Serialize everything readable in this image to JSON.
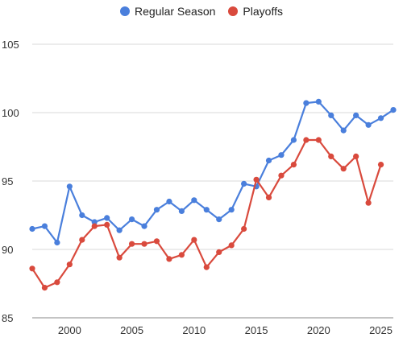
{
  "chart_data": {
    "type": "line",
    "title": "",
    "xlabel": "",
    "ylabel": "",
    "ylim": [
      85,
      105
    ],
    "xlim": [
      1997,
      2026
    ],
    "yticks": [
      85,
      90,
      95,
      100,
      105
    ],
    "xticks": [
      2000,
      2005,
      2010,
      2015,
      2020,
      2025
    ],
    "grid": "horizontal",
    "legend": "top-center",
    "series": [
      {
        "name": "Regular Season",
        "color": "#4a7fdc",
        "points": [
          [
            1997,
            91.5
          ],
          [
            1998,
            91.7
          ],
          [
            1999,
            90.5
          ],
          [
            2000,
            94.6
          ],
          [
            2001,
            92.5
          ],
          [
            2002,
            92.0
          ],
          [
            2003,
            92.3
          ],
          [
            2004,
            91.4
          ],
          [
            2005,
            92.2
          ],
          [
            2006,
            91.7
          ],
          [
            2007,
            92.9
          ],
          [
            2008,
            93.5
          ],
          [
            2009,
            92.8
          ],
          [
            2010,
            93.6
          ],
          [
            2011,
            92.9
          ],
          [
            2012,
            92.2
          ],
          [
            2013,
            92.9
          ],
          [
            2014,
            94.8
          ],
          [
            2015,
            94.6
          ],
          [
            2016,
            96.5
          ],
          [
            2017,
            96.9
          ],
          [
            2018,
            98.0
          ],
          [
            2019,
            100.7
          ],
          [
            2020,
            100.8
          ],
          [
            2021,
            99.8
          ],
          [
            2022,
            98.7
          ],
          [
            2023,
            99.8
          ],
          [
            2024,
            99.1
          ],
          [
            2025,
            99.6
          ],
          [
            2026,
            100.2
          ]
        ]
      },
      {
        "name": "Playoffs",
        "color": "#d94a3d",
        "points": [
          [
            1997,
            88.6
          ],
          [
            1998,
            87.2
          ],
          [
            1999,
            87.6
          ],
          [
            2000,
            88.9
          ],
          [
            2001,
            90.7
          ],
          [
            2002,
            91.7
          ],
          [
            2003,
            91.8
          ],
          [
            2004,
            89.4
          ],
          [
            2005,
            90.4
          ],
          [
            2006,
            90.4
          ],
          [
            2007,
            90.6
          ],
          [
            2008,
            89.3
          ],
          [
            2009,
            89.6
          ],
          [
            2010,
            90.7
          ],
          [
            2011,
            88.7
          ],
          [
            2012,
            89.8
          ],
          [
            2013,
            90.3
          ],
          [
            2014,
            91.5
          ],
          [
            2015,
            95.1
          ],
          [
            2016,
            93.8
          ],
          [
            2017,
            95.4
          ],
          [
            2018,
            96.2
          ],
          [
            2019,
            98.0
          ],
          [
            2020,
            98.0
          ],
          [
            2021,
            96.8
          ],
          [
            2022,
            95.9
          ],
          [
            2023,
            96.8
          ],
          [
            2024,
            93.4
          ],
          [
            2025,
            96.2
          ]
        ]
      }
    ]
  }
}
